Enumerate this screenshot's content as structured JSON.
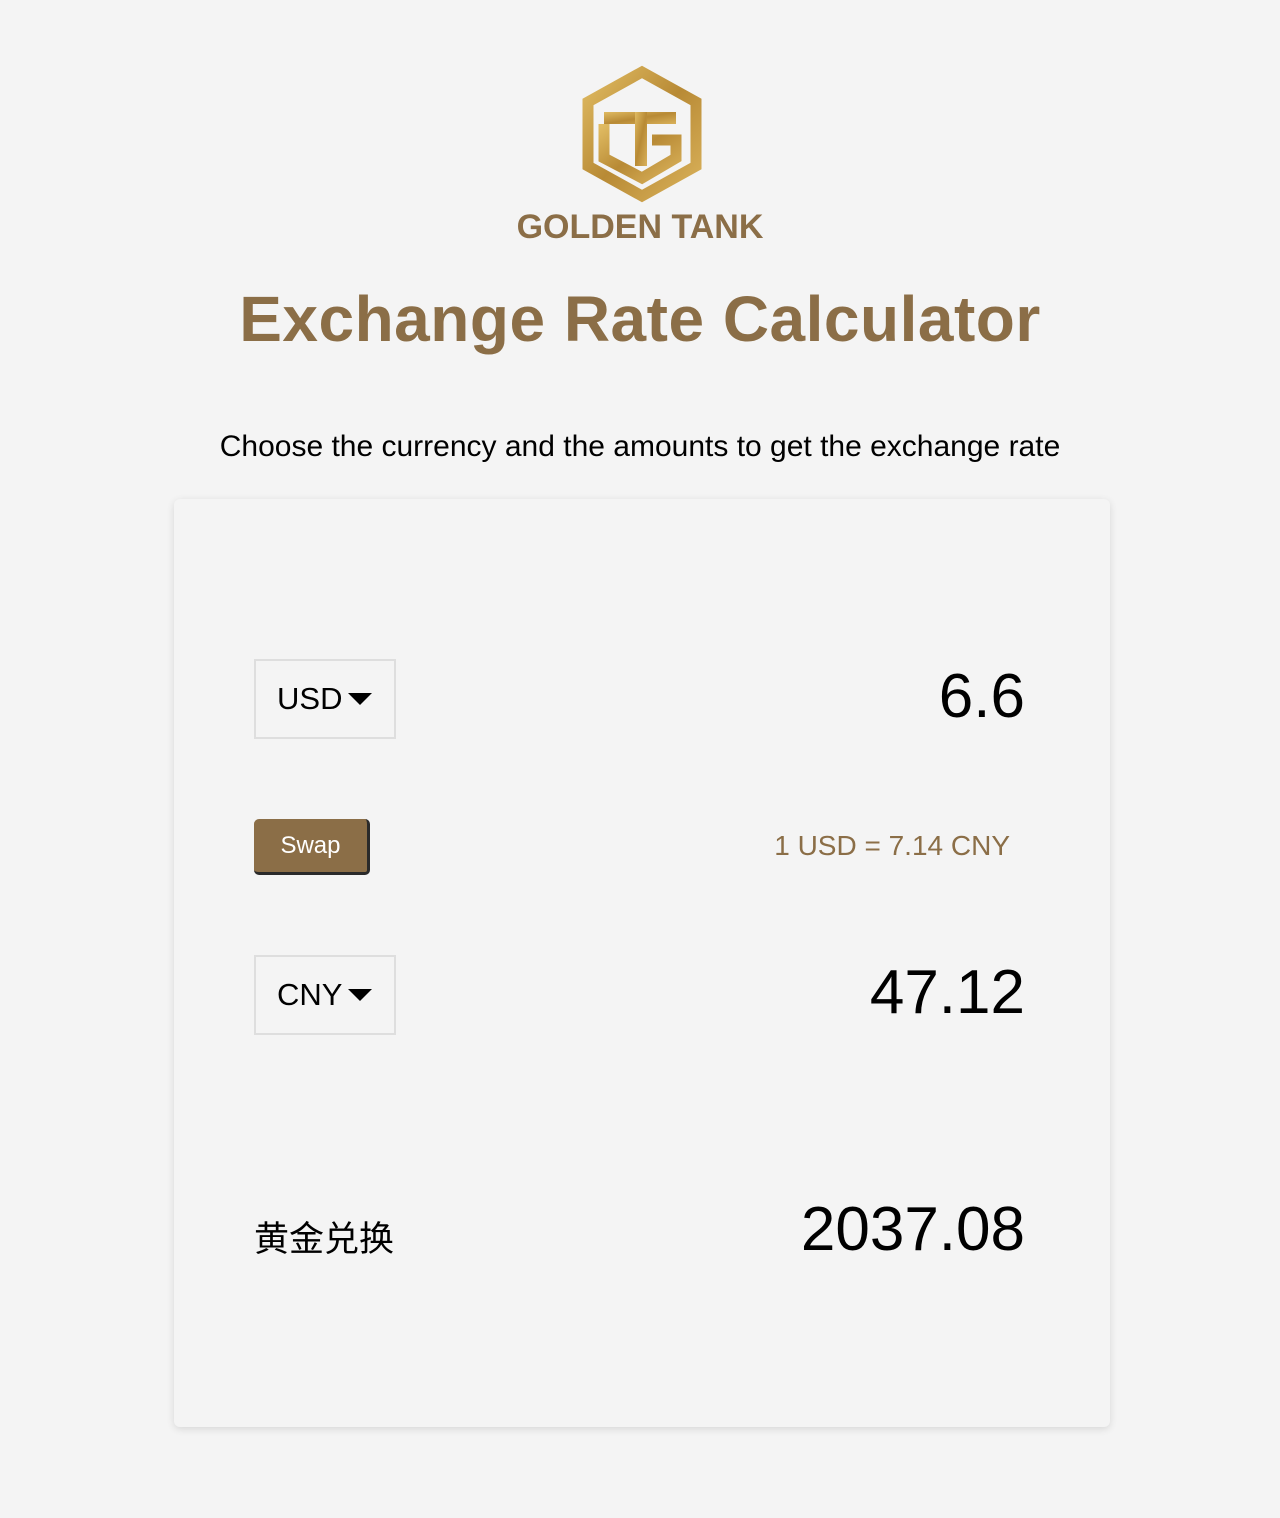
{
  "brand": {
    "name": "GOLDEN TANK",
    "logo_icon": "golden-tank-hexagon-logo",
    "accent_color": "#8b6e47",
    "logo_gold": "#c9a24a"
  },
  "header": {
    "title": "Exchange Rate Calculator",
    "subtitle": "Choose the currency and the amounts to get the exchange rate"
  },
  "calculator": {
    "from": {
      "currency": "USD",
      "amount": "6.6"
    },
    "swap_label": "Swap",
    "rate_text": "1 USD = 7.14 CNY",
    "to": {
      "currency": "CNY",
      "amount": "47.12"
    },
    "gold": {
      "label": "黄金兑换",
      "value": "2037.08"
    }
  }
}
